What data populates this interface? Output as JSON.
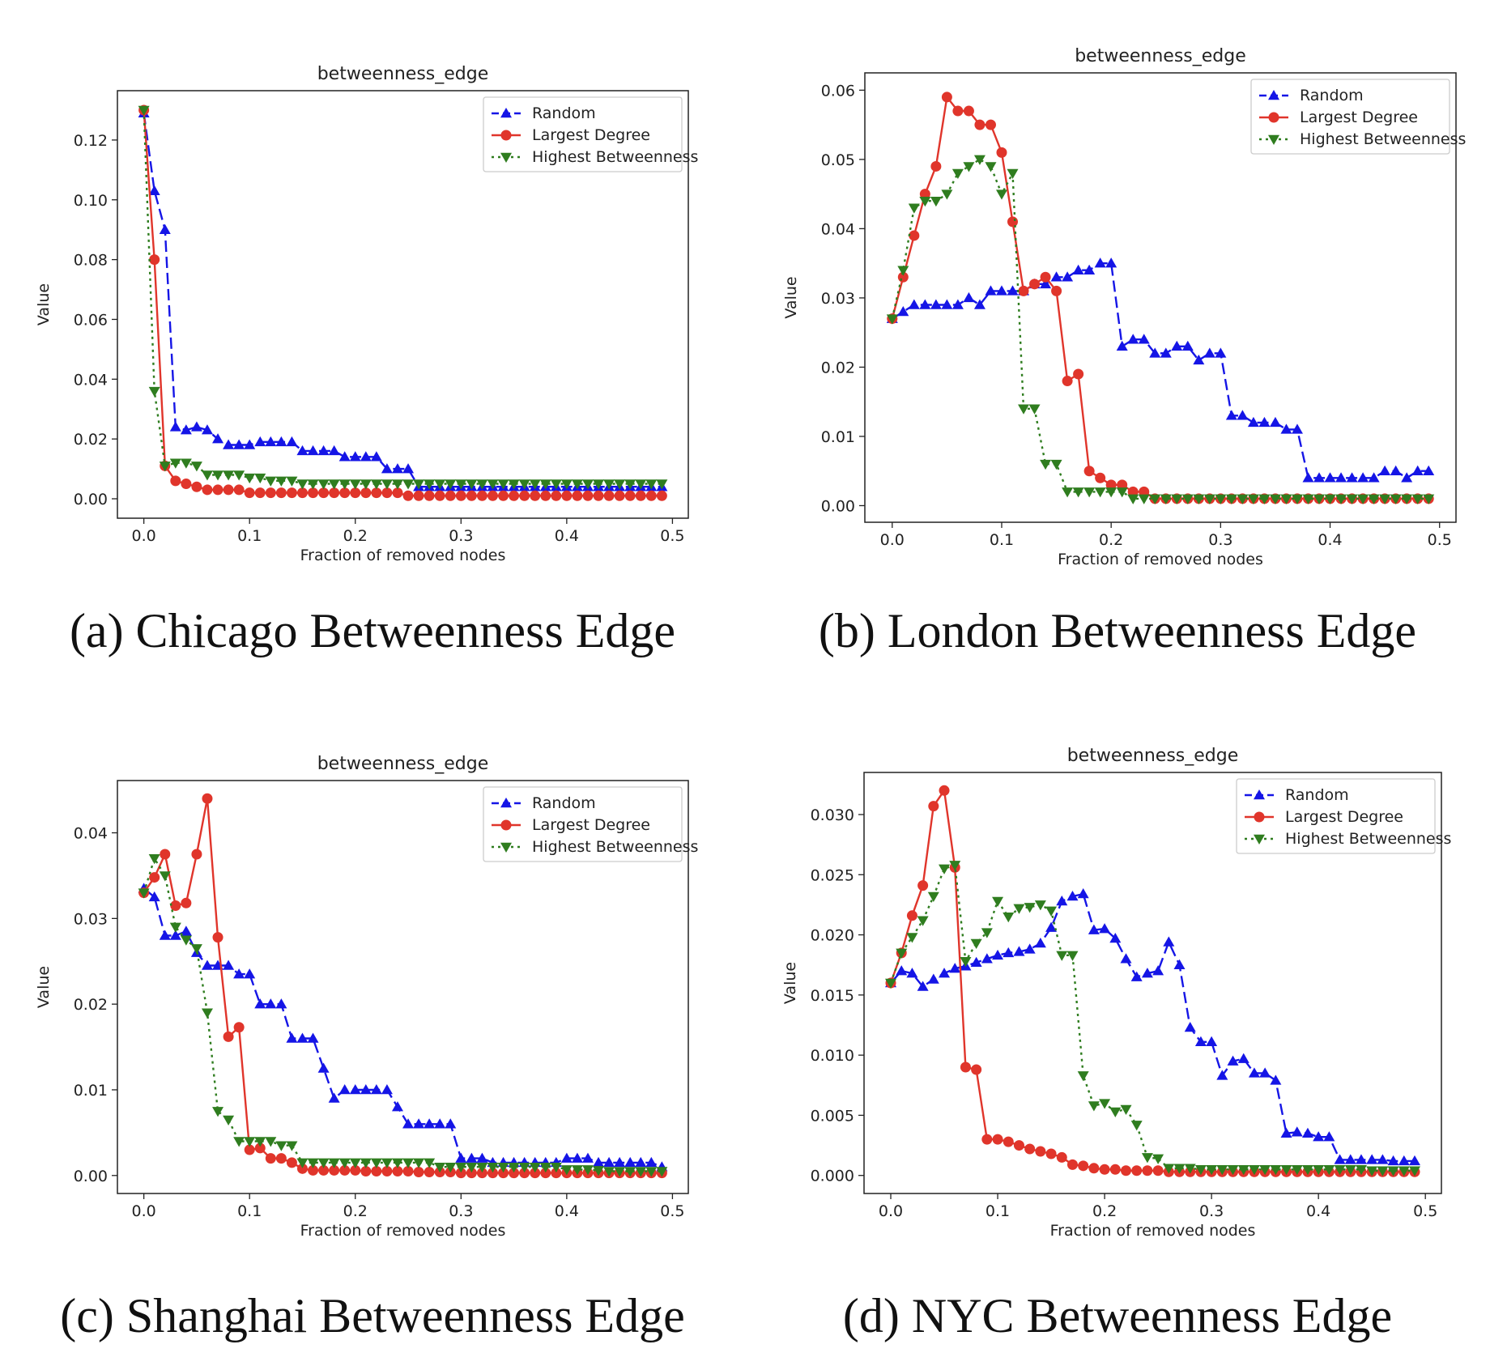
{
  "colors": {
    "Random": "#1515e6",
    "Largest Degree": "#e0352b",
    "Highest Betweenness": "#2f7d1f"
  },
  "chart_data": [
    {
      "type": "line",
      "caption": "(a) Chicago Betweenness Edge",
      "title": "betweenness_edge",
      "xlabel": "Fraction of removed nodes",
      "ylabel": "Value",
      "xlim": [
        -0.025,
        0.515
      ],
      "ylim": [
        -0.0065,
        0.1365
      ],
      "xticks": [
        0.0,
        0.1,
        0.2,
        0.3,
        0.4,
        0.5
      ],
      "xtick_labels": [
        "0.0",
        "0.1",
        "0.2",
        "0.3",
        "0.4",
        "0.5"
      ],
      "yticks": [
        0.0,
        0.02,
        0.04,
        0.06,
        0.08,
        0.1,
        0.12
      ],
      "ytick_labels": [
        "0.00",
        "0.02",
        "0.04",
        "0.06",
        "0.08",
        "0.10",
        "0.12"
      ],
      "legend": "top-right",
      "x": [
        0.0,
        0.01,
        0.02,
        0.03,
        0.04,
        0.05,
        0.06,
        0.07,
        0.08,
        0.09,
        0.1,
        0.11,
        0.12,
        0.13,
        0.14,
        0.15,
        0.16,
        0.17,
        0.18,
        0.19,
        0.2,
        0.21,
        0.22,
        0.23,
        0.24,
        0.25,
        0.26,
        0.27,
        0.28,
        0.29,
        0.3,
        0.31,
        0.32,
        0.33,
        0.34,
        0.35,
        0.36,
        0.37,
        0.38,
        0.39,
        0.4,
        0.41,
        0.42,
        0.43,
        0.44,
        0.45,
        0.46,
        0.47,
        0.48,
        0.49
      ],
      "series": [
        {
          "name": "Random",
          "values": [
            0.129,
            0.103,
            0.09,
            0.024,
            0.023,
            0.024,
            0.023,
            0.02,
            0.018,
            0.018,
            0.018,
            0.019,
            0.019,
            0.019,
            0.019,
            0.016,
            0.016,
            0.016,
            0.016,
            0.014,
            0.014,
            0.014,
            0.014,
            0.01,
            0.01,
            0.01,
            0.004,
            0.004,
            0.004,
            0.004,
            0.004,
            0.004,
            0.004,
            0.004,
            0.004,
            0.004,
            0.004,
            0.004,
            0.004,
            0.004,
            0.004,
            0.004,
            0.004,
            0.004,
            0.004,
            0.004,
            0.004,
            0.004,
            0.004,
            0.004
          ]
        },
        {
          "name": "Largest Degree",
          "values": [
            0.13,
            0.08,
            0.011,
            0.006,
            0.005,
            0.004,
            0.003,
            0.003,
            0.003,
            0.003,
            0.002,
            0.002,
            0.002,
            0.002,
            0.002,
            0.002,
            0.002,
            0.002,
            0.002,
            0.002,
            0.002,
            0.002,
            0.002,
            0.002,
            0.002,
            0.001,
            0.001,
            0.001,
            0.001,
            0.001,
            0.001,
            0.001,
            0.001,
            0.001,
            0.001,
            0.001,
            0.001,
            0.001,
            0.001,
            0.001,
            0.001,
            0.001,
            0.001,
            0.001,
            0.001,
            0.001,
            0.001,
            0.001,
            0.001,
            0.001
          ]
        },
        {
          "name": "Highest Betweenness",
          "values": [
            0.13,
            0.036,
            0.011,
            0.012,
            0.012,
            0.011,
            0.008,
            0.008,
            0.008,
            0.008,
            0.007,
            0.007,
            0.006,
            0.006,
            0.006,
            0.005,
            0.005,
            0.005,
            0.005,
            0.005,
            0.005,
            0.005,
            0.005,
            0.005,
            0.005,
            0.005,
            0.005,
            0.005,
            0.005,
            0.005,
            0.005,
            0.005,
            0.005,
            0.005,
            0.005,
            0.005,
            0.005,
            0.005,
            0.005,
            0.005,
            0.005,
            0.005,
            0.005,
            0.005,
            0.005,
            0.005,
            0.005,
            0.005,
            0.005,
            0.005
          ]
        }
      ]
    },
    {
      "type": "line",
      "caption": "(b) London Betweenness Edge",
      "title": "betweenness_edge",
      "xlabel": "Fraction of removed nodes",
      "ylabel": "Value",
      "xlim": [
        -0.025,
        0.515
      ],
      "ylim": [
        -0.0024,
        0.0625
      ],
      "xticks": [
        0.0,
        0.1,
        0.2,
        0.3,
        0.4,
        0.5
      ],
      "xtick_labels": [
        "0.0",
        "0.1",
        "0.2",
        "0.3",
        "0.4",
        "0.5"
      ],
      "yticks": [
        0.0,
        0.01,
        0.02,
        0.03,
        0.04,
        0.05,
        0.06
      ],
      "ytick_labels": [
        "0.00",
        "0.01",
        "0.02",
        "0.03",
        "0.04",
        "0.05",
        "0.06"
      ],
      "legend": "top-right",
      "x": [
        0.0,
        0.01,
        0.02,
        0.03,
        0.04,
        0.05,
        0.06,
        0.07,
        0.08,
        0.09,
        0.1,
        0.11,
        0.12,
        0.13,
        0.14,
        0.15,
        0.16,
        0.17,
        0.18,
        0.19,
        0.2,
        0.21,
        0.22,
        0.23,
        0.24,
        0.25,
        0.26,
        0.27,
        0.28,
        0.29,
        0.3,
        0.31,
        0.32,
        0.33,
        0.34,
        0.35,
        0.36,
        0.37,
        0.38,
        0.39,
        0.4,
        0.41,
        0.42,
        0.43,
        0.44,
        0.45,
        0.46,
        0.47,
        0.48,
        0.49
      ],
      "series": [
        {
          "name": "Random",
          "values": [
            0.027,
            0.028,
            0.029,
            0.029,
            0.029,
            0.029,
            0.029,
            0.03,
            0.029,
            0.031,
            0.031,
            0.031,
            0.031,
            0.032,
            0.032,
            0.033,
            0.033,
            0.034,
            0.034,
            0.035,
            0.035,
            0.023,
            0.024,
            0.024,
            0.022,
            0.022,
            0.023,
            0.023,
            0.021,
            0.022,
            0.022,
            0.013,
            0.013,
            0.012,
            0.012,
            0.012,
            0.011,
            0.011,
            0.004,
            0.004,
            0.004,
            0.004,
            0.004,
            0.004,
            0.004,
            0.005,
            0.005,
            0.004,
            0.005,
            0.005
          ]
        },
        {
          "name": "Largest Degree",
          "values": [
            0.027,
            0.033,
            0.039,
            0.045,
            0.049,
            0.059,
            0.057,
            0.057,
            0.055,
            0.055,
            0.051,
            0.041,
            0.031,
            0.032,
            0.033,
            0.031,
            0.018,
            0.019,
            0.005,
            0.004,
            0.003,
            0.003,
            0.002,
            0.002,
            0.001,
            0.001,
            0.001,
            0.001,
            0.001,
            0.001,
            0.001,
            0.001,
            0.001,
            0.001,
            0.001,
            0.001,
            0.001,
            0.001,
            0.001,
            0.001,
            0.001,
            0.001,
            0.001,
            0.001,
            0.001,
            0.001,
            0.001,
            0.001,
            0.001,
            0.001
          ]
        },
        {
          "name": "Highest Betweenness",
          "values": [
            0.027,
            0.034,
            0.043,
            0.044,
            0.044,
            0.045,
            0.048,
            0.049,
            0.05,
            0.049,
            0.045,
            0.048,
            0.014,
            0.014,
            0.006,
            0.006,
            0.002,
            0.002,
            0.002,
            0.002,
            0.002,
            0.002,
            0.001,
            0.001,
            0.001,
            0.001,
            0.001,
            0.001,
            0.001,
            0.001,
            0.001,
            0.001,
            0.001,
            0.001,
            0.001,
            0.001,
            0.001,
            0.001,
            0.001,
            0.001,
            0.001,
            0.001,
            0.001,
            0.001,
            0.001,
            0.001,
            0.001,
            0.001,
            0.001,
            0.001
          ]
        }
      ]
    },
    {
      "type": "line",
      "caption": "(c) Shanghai Betweenness Edge",
      "title": "betweenness_edge",
      "xlabel": "Fraction of removed nodes",
      "ylabel": "Value",
      "xlim": [
        -0.025,
        0.515
      ],
      "ylim": [
        -0.0021,
        0.0461
      ],
      "xticks": [
        0.0,
        0.1,
        0.2,
        0.3,
        0.4,
        0.5
      ],
      "xtick_labels": [
        "0.0",
        "0.1",
        "0.2",
        "0.3",
        "0.4",
        "0.5"
      ],
      "yticks": [
        0.0,
        0.01,
        0.02,
        0.03,
        0.04
      ],
      "ytick_labels": [
        "0.00",
        "0.01",
        "0.02",
        "0.03",
        "0.04"
      ],
      "legend": "top-right",
      "x": [
        0.0,
        0.01,
        0.02,
        0.03,
        0.04,
        0.05,
        0.06,
        0.07,
        0.08,
        0.09,
        0.1,
        0.11,
        0.12,
        0.13,
        0.14,
        0.15,
        0.16,
        0.17,
        0.18,
        0.19,
        0.2,
        0.21,
        0.22,
        0.23,
        0.24,
        0.25,
        0.26,
        0.27,
        0.28,
        0.29,
        0.3,
        0.31,
        0.32,
        0.33,
        0.34,
        0.35,
        0.36,
        0.37,
        0.38,
        0.39,
        0.4,
        0.41,
        0.42,
        0.43,
        0.44,
        0.45,
        0.46,
        0.47,
        0.48,
        0.49
      ],
      "series": [
        {
          "name": "Random",
          "values": [
            0.0335,
            0.0325,
            0.028,
            0.028,
            0.0285,
            0.026,
            0.0245,
            0.0245,
            0.0245,
            0.0235,
            0.0235,
            0.02,
            0.02,
            0.02,
            0.016,
            0.016,
            0.016,
            0.0125,
            0.009,
            0.01,
            0.01,
            0.01,
            0.01,
            0.01,
            0.008,
            0.006,
            0.006,
            0.006,
            0.006,
            0.006,
            0.002,
            0.002,
            0.002,
            0.0015,
            0.0015,
            0.0015,
            0.0015,
            0.0015,
            0.0015,
            0.0015,
            0.002,
            0.002,
            0.002,
            0.0015,
            0.0015,
            0.0015,
            0.0015,
            0.0015,
            0.0015,
            0.001
          ]
        },
        {
          "name": "Largest Degree",
          "values": [
            0.033,
            0.0348,
            0.0375,
            0.0315,
            0.0318,
            0.0375,
            0.044,
            0.0278,
            0.0162,
            0.0173,
            0.003,
            0.0032,
            0.002,
            0.002,
            0.0015,
            0.0008,
            0.0006,
            0.0006,
            0.0006,
            0.0006,
            0.0006,
            0.0005,
            0.0005,
            0.0005,
            0.0005,
            0.0005,
            0.0004,
            0.0004,
            0.0004,
            0.0004,
            0.0003,
            0.0003,
            0.0003,
            0.0003,
            0.0003,
            0.0003,
            0.0003,
            0.0003,
            0.0003,
            0.0003,
            0.0003,
            0.0003,
            0.0003,
            0.0003,
            0.0003,
            0.0003,
            0.0003,
            0.0003,
            0.0003,
            0.0003
          ]
        },
        {
          "name": "Highest Betweenness",
          "values": [
            0.033,
            0.037,
            0.035,
            0.029,
            0.0275,
            0.0265,
            0.019,
            0.0075,
            0.0065,
            0.004,
            0.004,
            0.004,
            0.004,
            0.0035,
            0.0035,
            0.0015,
            0.0015,
            0.0015,
            0.0015,
            0.0015,
            0.0015,
            0.0015,
            0.0015,
            0.0015,
            0.0015,
            0.0015,
            0.0015,
            0.0015,
            0.001,
            0.001,
            0.001,
            0.001,
            0.001,
            0.001,
            0.001,
            0.001,
            0.001,
            0.001,
            0.001,
            0.001,
            0.0007,
            0.0007,
            0.0007,
            0.0006,
            0.0005,
            0.0005,
            0.0005,
            0.0005,
            0.0005,
            0.0005
          ]
        }
      ]
    },
    {
      "type": "line",
      "caption": "(d) NYC Betweenness Edge",
      "title": "betweenness_edge",
      "xlabel": "Fraction of removed nodes",
      "ylabel": "Value",
      "xlim": [
        -0.025,
        0.515
      ],
      "ylim": [
        -0.0015,
        0.0335
      ],
      "xticks": [
        0.0,
        0.1,
        0.2,
        0.3,
        0.4,
        0.5
      ],
      "xtick_labels": [
        "0.0",
        "0.1",
        "0.2",
        "0.3",
        "0.4",
        "0.5"
      ],
      "yticks": [
        0.0,
        0.005,
        0.01,
        0.015,
        0.02,
        0.025,
        0.03
      ],
      "ytick_labels": [
        "0.000",
        "0.005",
        "0.010",
        "0.015",
        "0.020",
        "0.025",
        "0.030"
      ],
      "legend": "top-right",
      "x": [
        0.0,
        0.01,
        0.02,
        0.03,
        0.04,
        0.05,
        0.06,
        0.07,
        0.08,
        0.09,
        0.1,
        0.11,
        0.12,
        0.13,
        0.14,
        0.15,
        0.16,
        0.17,
        0.18,
        0.19,
        0.2,
        0.21,
        0.22,
        0.23,
        0.24,
        0.25,
        0.26,
        0.27,
        0.28,
        0.29,
        0.3,
        0.31,
        0.32,
        0.33,
        0.34,
        0.35,
        0.36,
        0.37,
        0.38,
        0.39,
        0.4,
        0.41,
        0.42,
        0.43,
        0.44,
        0.45,
        0.46,
        0.47,
        0.48,
        0.49
      ],
      "series": [
        {
          "name": "Random",
          "values": [
            0.016,
            0.017,
            0.0168,
            0.0157,
            0.0163,
            0.0168,
            0.0172,
            0.0174,
            0.0177,
            0.018,
            0.0183,
            0.0185,
            0.0186,
            0.0188,
            0.0193,
            0.0206,
            0.0228,
            0.0232,
            0.0234,
            0.0204,
            0.0205,
            0.0197,
            0.018,
            0.0165,
            0.0168,
            0.017,
            0.0194,
            0.0175,
            0.0123,
            0.0111,
            0.0111,
            0.0083,
            0.0095,
            0.0097,
            0.0085,
            0.0085,
            0.0079,
            0.0035,
            0.0036,
            0.0035,
            0.0032,
            0.0032,
            0.0013,
            0.0013,
            0.0013,
            0.0013,
            0.0013,
            0.0012,
            0.0012,
            0.0012
          ]
        },
        {
          "name": "Largest Degree",
          "values": [
            0.016,
            0.0185,
            0.0216,
            0.0241,
            0.0307,
            0.032,
            0.0256,
            0.009,
            0.0088,
            0.003,
            0.003,
            0.0028,
            0.0025,
            0.0022,
            0.002,
            0.0018,
            0.0015,
            0.0009,
            0.0008,
            0.0006,
            0.0005,
            0.0005,
            0.0004,
            0.0004,
            0.0004,
            0.0004,
            0.0003,
            0.0003,
            0.0003,
            0.0003,
            0.0003,
            0.0003,
            0.0003,
            0.0003,
            0.0003,
            0.0003,
            0.0003,
            0.0003,
            0.0003,
            0.0003,
            0.0003,
            0.0003,
            0.0003,
            0.0003,
            0.0003,
            0.0003,
            0.0003,
            0.0003,
            0.0003,
            0.0003
          ]
        },
        {
          "name": "Highest Betweenness",
          "values": [
            0.016,
            0.0185,
            0.0198,
            0.0212,
            0.0232,
            0.0255,
            0.0258,
            0.0178,
            0.0193,
            0.0202,
            0.0228,
            0.0215,
            0.0222,
            0.0223,
            0.0225,
            0.022,
            0.0183,
            0.0183,
            0.0083,
            0.0058,
            0.006,
            0.0053,
            0.0055,
            0.0042,
            0.0015,
            0.0014,
            0.0006,
            0.0006,
            0.0006,
            0.0005,
            0.0005,
            0.0005,
            0.0005,
            0.0005,
            0.0005,
            0.0005,
            0.0005,
            0.0005,
            0.0005,
            0.0005,
            0.0005,
            0.0005,
            0.0005,
            0.0005,
            0.0005,
            0.0004,
            0.0004,
            0.0004,
            0.0004,
            0.0004
          ]
        }
      ]
    }
  ]
}
